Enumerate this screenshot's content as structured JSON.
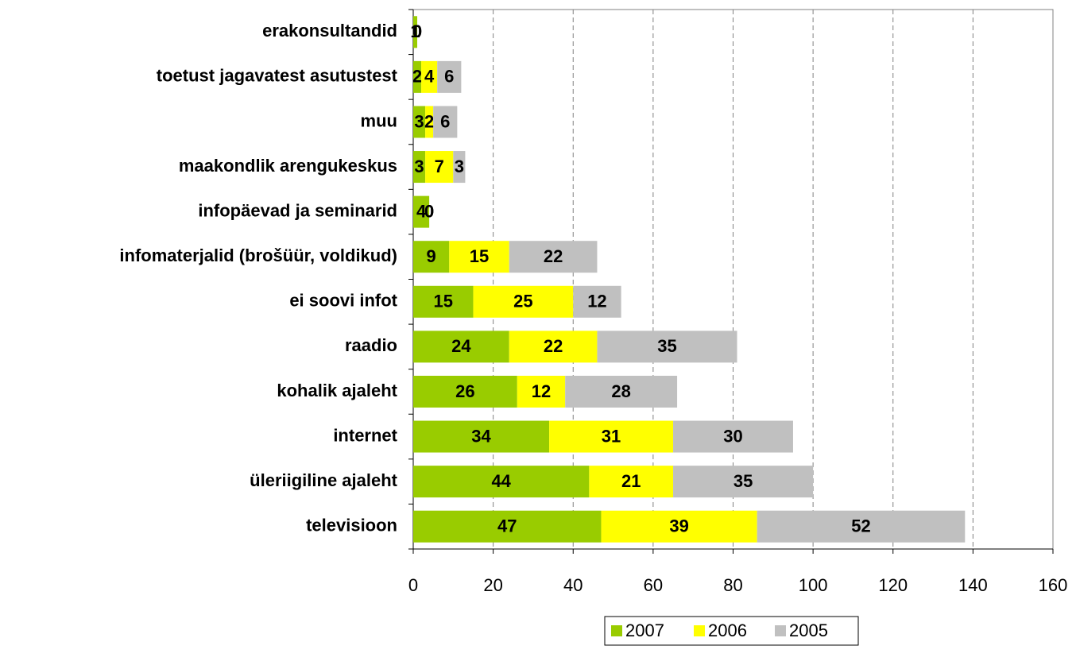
{
  "chart_data": {
    "type": "stacked_barh",
    "categories": [
      "erakonsultandid",
      "toetust jagavatest asutustest",
      "muu",
      "maakondlik arengukeskus",
      "infopäevad ja seminarid",
      "infomaterjalid (brošüür, voldikud)",
      "ei soovi infot",
      "raadio",
      "kohalik ajaleht",
      "internet",
      "üleriigiline ajaleht",
      "televisioon"
    ],
    "series": [
      {
        "name": "2007",
        "color": "#99cc00",
        "values": [
          1,
          2,
          3,
          3,
          4,
          9,
          15,
          24,
          26,
          34,
          44,
          47
        ]
      },
      {
        "name": "2006",
        "color": "#ffff00",
        "values": [
          0,
          4,
          2,
          7,
          0,
          15,
          25,
          22,
          12,
          31,
          21,
          39
        ]
      },
      {
        "name": "2005",
        "color": "#c0c0c0",
        "values": [
          0,
          6,
          6,
          3,
          0,
          22,
          12,
          35,
          28,
          30,
          35,
          52
        ]
      }
    ],
    "xlim": [
      0,
      160
    ],
    "xticks": [
      0,
      20,
      40,
      60,
      80,
      100,
      120,
      140,
      160
    ],
    "grid": true,
    "legend": "bottom"
  }
}
